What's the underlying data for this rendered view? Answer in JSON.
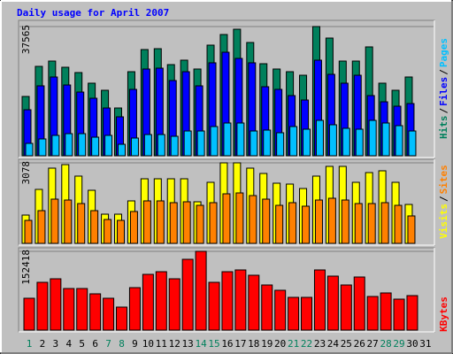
{
  "chart_data": {
    "type": "bar",
    "title": "Daily usage for April 2007",
    "categories": [
      "1",
      "2",
      "3",
      "4",
      "5",
      "6",
      "7",
      "8",
      "9",
      "10",
      "11",
      "12",
      "13",
      "14",
      "15",
      "16",
      "17",
      "18",
      "19",
      "20",
      "21",
      "22",
      "23",
      "24",
      "25",
      "26",
      "27",
      "28",
      "29",
      "30",
      "31"
    ],
    "highlight_indices": [
      0,
      6,
      7,
      13,
      14,
      20,
      21,
      27,
      28
    ],
    "highlight_color": "#00805c",
    "legend_separator": "/",
    "panels": [
      {
        "ylim": [
          0,
          37565
        ],
        "yticks": [
          37565
        ],
        "series": [
          {
            "name": "Hits",
            "color": "#00805c",
            "values": [
              17240,
              25990,
              27530,
              25730,
              24190,
              21100,
              19040,
              13890,
              24440,
              30880,
              31130,
              26500,
              27790,
              25220,
              32160,
              35250,
              36790,
              32930,
              26760,
              25220,
              24440,
              23410,
              37565,
              34220,
              27530,
              27530,
              31650,
              21100,
              19040,
              22900,
              null
            ]
          },
          {
            "name": "Files",
            "color": "#0000ff",
            "values": [
              13380,
              20330,
              22900,
              20580,
              18520,
              16720,
              13890,
              11320,
              19300,
              25220,
              25470,
              21870,
              24440,
              20330,
              27020,
              30100,
              28300,
              27020,
              20070,
              19300,
              17500,
              16210,
              27790,
              23670,
              21100,
              23410,
              17500,
              15690,
              14410,
              15180,
              null
            ]
          },
          {
            "name": "Pages",
            "color": "#00c0ff",
            "values": [
              3600,
              4890,
              5920,
              6430,
              6430,
              5400,
              5920,
              3340,
              5150,
              6170,
              6170,
              5660,
              7200,
              7200,
              8490,
              9520,
              9520,
              7200,
              7460,
              6690,
              8490,
              7720,
              10290,
              9010,
              7980,
              7720,
              10290,
              9520,
              8750,
              7200,
              null
            ]
          }
        ]
      },
      {
        "ylim": [
          0,
          3078
        ],
        "yticks": [
          3078
        ],
        "series": [
          {
            "name": "Visits",
            "color": "#ffff00",
            "values": [
              1082,
              2063,
              2875,
              3010,
              2571,
              2029,
              1116,
              1116,
              1624,
              2469,
              2469,
              2469,
              2469,
              1590,
              2334,
              3078,
              3078,
              2875,
              2672,
              2300,
              2266,
              2097,
              2571,
              2943,
              2943,
              2334,
              2706,
              2774,
              2334,
              1488,
              null
            ]
          },
          {
            "name": "Sites",
            "color": "#ff8000",
            "values": [
              879,
              1251,
              1691,
              1657,
              1522,
              1251,
              913,
              879,
              1218,
              1624,
              1624,
              1556,
              1590,
              1454,
              1556,
              1894,
              1928,
              1827,
              1691,
              1454,
              1556,
              1421,
              1657,
              1725,
              1657,
              1522,
              1522,
              1556,
              1454,
              1049,
              null
            ]
          }
        ]
      },
      {
        "ylim": [
          0,
          152418
        ],
        "yticks": [
          152418
        ],
        "series": [
          {
            "name": "KBytes",
            "color": "#ff0000",
            "values": [
              61650,
              92480,
              99330,
              80490,
              80490,
              70220,
              61650,
              44530,
              82200,
              107890,
              113030,
              99330,
              137000,
              152418,
              92480,
              113030,
              116450,
              106180,
              87340,
              77070,
              63370,
              63370,
              116450,
              104470,
              87340,
              102750,
              65080,
              71930,
              59940,
              66790,
              null
            ]
          }
        ]
      }
    ]
  }
}
